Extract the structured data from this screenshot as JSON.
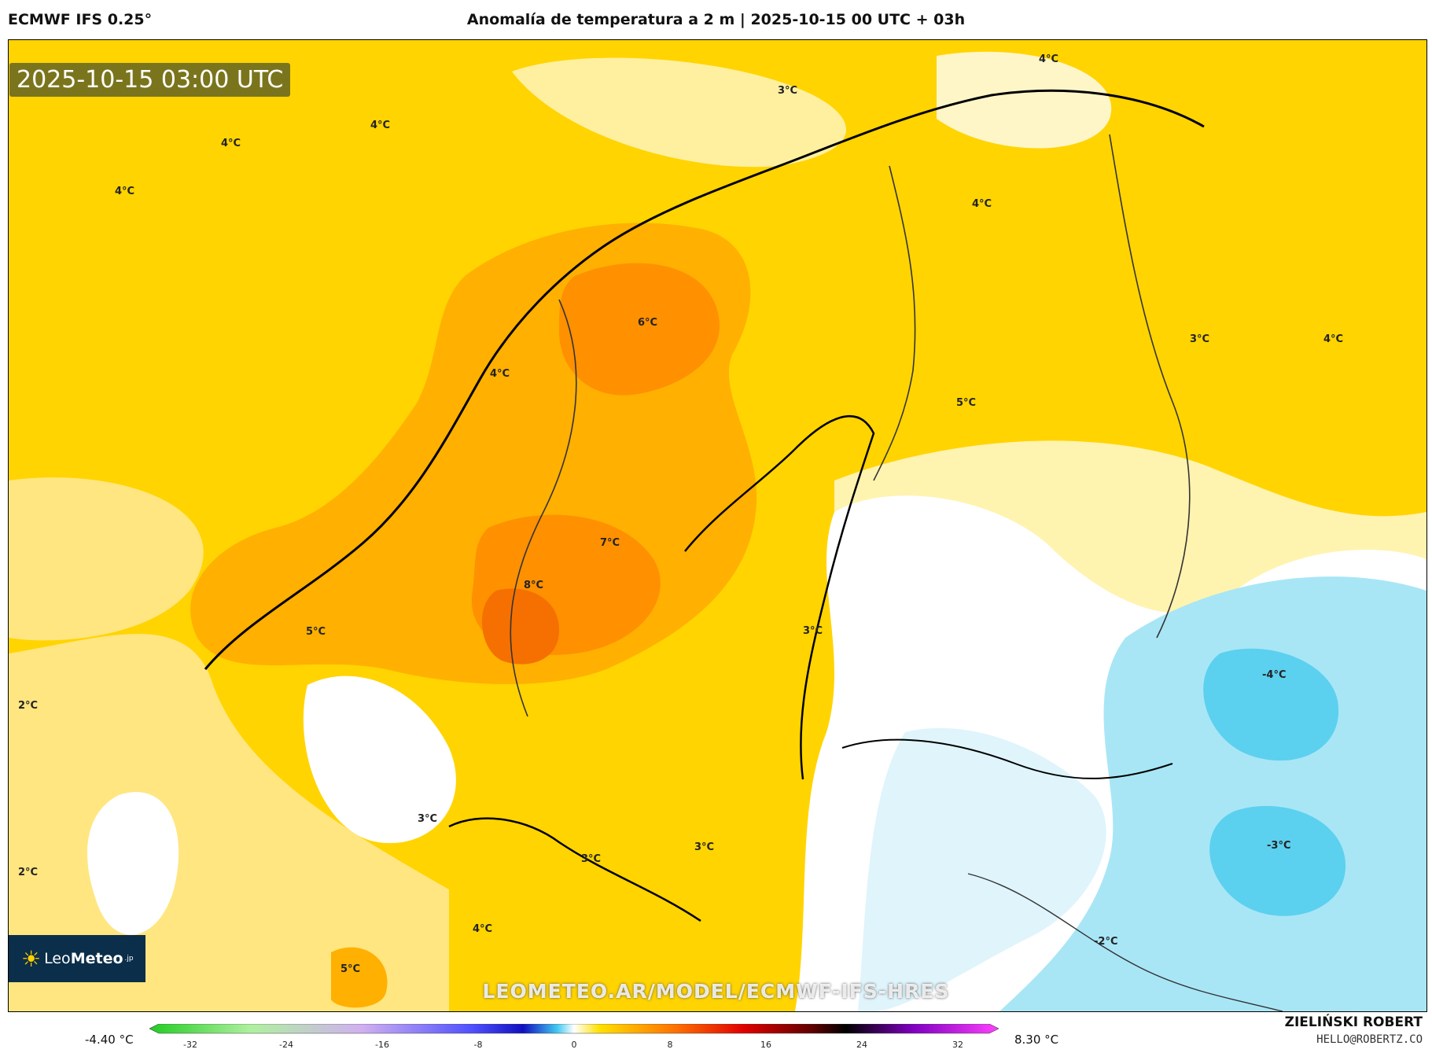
{
  "header": {
    "model": "ECMWF IFS 0.25°",
    "title": "Anomalía de temperatura a 2 m | 2025-10-15 00 UTC + 03h"
  },
  "map": {
    "timestamp": "2025-10-15 03:00 UTC",
    "labels": [
      {
        "text": "4°C"
      },
      {
        "text": "4°C"
      },
      {
        "text": "4°C"
      },
      {
        "text": "3°C"
      },
      {
        "text": "4°C"
      },
      {
        "text": "4°C"
      },
      {
        "text": "6°C"
      },
      {
        "text": "3°C"
      },
      {
        "text": "4°C"
      },
      {
        "text": "4°C"
      },
      {
        "text": "5°C"
      },
      {
        "text": "7°C"
      },
      {
        "text": "8°C"
      },
      {
        "text": "5°C"
      },
      {
        "text": "3°C"
      },
      {
        "text": "2°C"
      },
      {
        "text": "-4°C"
      },
      {
        "text": "2°C"
      },
      {
        "text": "3°C"
      },
      {
        "text": "3°C"
      },
      {
        "text": "3°C"
      },
      {
        "text": "-3°C"
      },
      {
        "text": "4°C"
      },
      {
        "text": "5°C"
      },
      {
        "text": "-2°C"
      }
    ],
    "colors": {
      "warm_4": "#ffd400",
      "warm_3": "#ffe680",
      "warm_5": "#ffb000",
      "warm_6": "#ff9000",
      "warm_8": "#f57000",
      "neutral": "#ffffff",
      "cool_1": "#dff4fb",
      "cool_2": "#a8e6f6",
      "cool_3": "#5cd0ef"
    }
  },
  "logo": {
    "brand_regular": "Leo",
    "brand_bold": "Meteo",
    "brand_suffix": ".jp"
  },
  "watermark": "LEOMETEO.AR/MODEL/ECMWF-IFS-HRES",
  "colorbar": {
    "min_label": "-4.40 °C",
    "max_label": "8.30 °C",
    "ticks": [
      "-32",
      "-24",
      "-16",
      "-8",
      "0",
      "8",
      "16",
      "24",
      "32"
    ]
  },
  "credit": {
    "name": "ZIELIŃSKI ROBERT",
    "email": "HELLO@ROBERTZ.CO"
  }
}
